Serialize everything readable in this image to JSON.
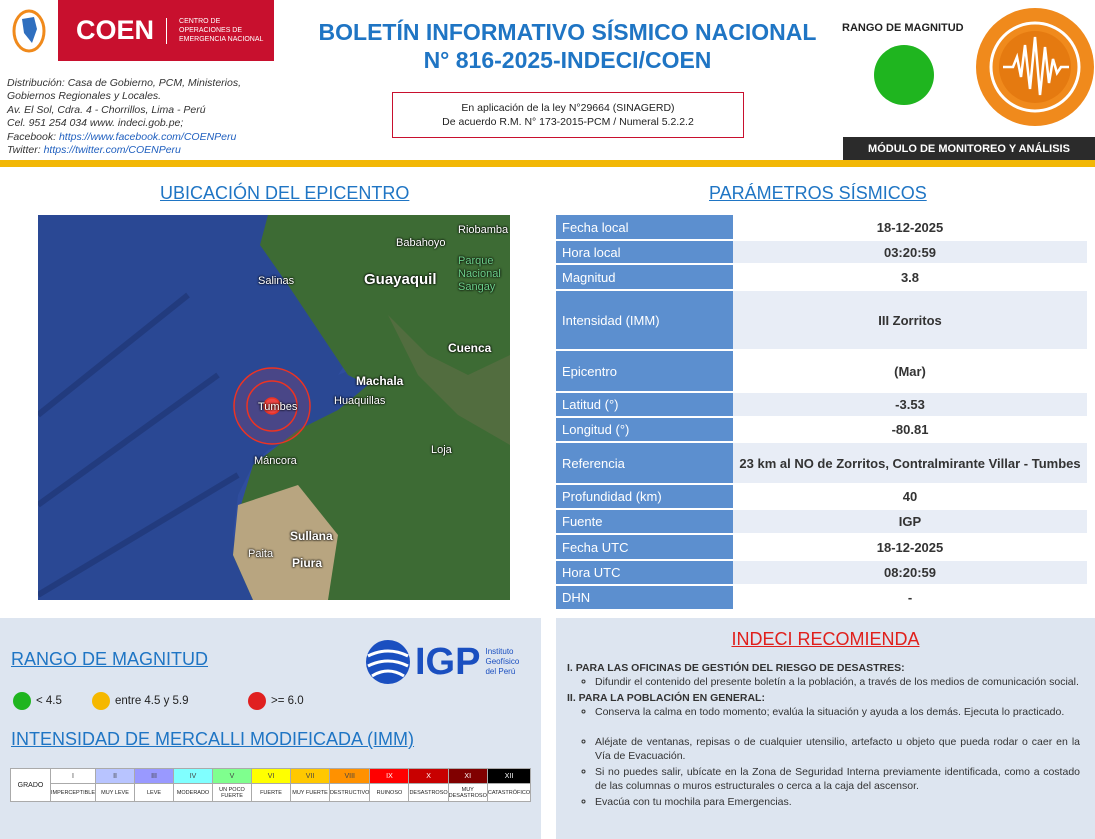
{
  "header": {
    "logo": {
      "name": "COEN",
      "subtitle": [
        "CENTRO DE",
        "OPERACIONES DE",
        "EMERGENCIA NACIONAL"
      ]
    },
    "distribution": [
      "Distribución: Casa de Gobierno, PCM, Ministerios,",
      "Gobiernos Regionales y Locales.",
      "Av. El Sol, Cdra. 4 - Chorrillos, Lima - Perú",
      "Cel. 951 254 034 www. indeci.gob.pe;"
    ],
    "facebook_label": "Facebook: ",
    "facebook_url": "https://www.facebook.com/COENPeru",
    "twitter_label": "Twitter: ",
    "twitter_url": "https://twitter.com/COENPeru",
    "title_line1": "BOLETÍN INFORMATIVO SÍSMICO NACIONAL",
    "title_line2": "N° 816-2025-INDECI/COEN",
    "law_line1": "En aplicación de la ley N°29664 (SINAGERD)",
    "law_line2": "De acuerdo R.M. N° 173-2015-PCM / Numeral 5.2.2.2",
    "range_title": "RANGO DE MAGNITUD",
    "range_color": "#1fb51f",
    "module": "MÓDULO DE MONITOREO Y ANÁLISIS"
  },
  "epicenter": {
    "title": "UBICACIÓN DEL EPICENTRO",
    "cities": [
      "Babahoyo",
      "Riobamba",
      "Salinas",
      "Guayaquil",
      "Parque Nacional Sangay",
      "Cuenca",
      "Machala",
      "Huaquillas",
      "Tumbes",
      "Loja",
      "Máncora",
      "Sullana",
      "Paita",
      "Piura"
    ]
  },
  "params": {
    "title": "PARÁMETROS SÍSMICOS",
    "rows": [
      {
        "k": "Fecha local",
        "v": "18-12-2025"
      },
      {
        "k": "Hora local",
        "v": "03:20:59"
      },
      {
        "k": "Magnitud",
        "v": "3.8"
      },
      {
        "k": "Intensidad (IMM)",
        "v": "III Zorritos"
      },
      {
        "k": "Epicentro",
        "v": "(Mar)"
      },
      {
        "k": "Latitud (°)",
        "v": "-3.53"
      },
      {
        "k": "Longitud (°)",
        "v": "-80.81"
      },
      {
        "k": "Referencia",
        "v": "23 km al NO de Zorritos, Contralmirante Villar - Tumbes"
      },
      {
        "k": "Profundidad (km)",
        "v": "40"
      },
      {
        "k": "Fuente",
        "v": "IGP"
      },
      {
        "k": "Fecha UTC",
        "v": "18-12-2025"
      },
      {
        "k": "Hora UTC",
        "v": "08:20:59"
      },
      {
        "k": "DHN",
        "v": "-"
      }
    ]
  },
  "magnitude": {
    "title": "RANGO DE MAGNITUD",
    "items": [
      {
        "label": "< 4.5",
        "color": "#1fb51f"
      },
      {
        "label": "entre 4.5 y 5.9",
        "color": "#f5b800"
      },
      {
        "label": ">= 6.0",
        "color": "#e02020"
      }
    ]
  },
  "igp": {
    "name": "IGP",
    "full": [
      "Instituto",
      "Geofísico",
      "del Perú"
    ]
  },
  "mercalli": {
    "title": "INTENSIDAD DE MERCALLI MODIFICADA (IMM)",
    "grado": "GRADO",
    "levels": [
      {
        "n": "I",
        "d": "IMPERCEPTIBLE",
        "c": "#ffffff",
        "t": "#444"
      },
      {
        "n": "II",
        "d": "MUY LEVE",
        "c": "#b8c4ff",
        "t": "#444"
      },
      {
        "n": "III",
        "d": "LEVE",
        "c": "#9999ff",
        "t": "#444"
      },
      {
        "n": "IV",
        "d": "MODERADO",
        "c": "#80ffff",
        "t": "#444"
      },
      {
        "n": "V",
        "d": "UN POCO FUERTE",
        "c": "#7fff8e",
        "t": "#444"
      },
      {
        "n": "VI",
        "d": "FUERTE",
        "c": "#ffff00",
        "t": "#444"
      },
      {
        "n": "VII",
        "d": "MUY FUERTE",
        "c": "#ffc800",
        "t": "#444"
      },
      {
        "n": "VIII",
        "d": "DESTRUCTIVO",
        "c": "#ff9100",
        "t": "#444"
      },
      {
        "n": "IX",
        "d": "RUINOSO",
        "c": "#ff0000",
        "t": "#fff"
      },
      {
        "n": "X",
        "d": "DESASTROSO",
        "c": "#c80000",
        "t": "#fff"
      },
      {
        "n": "XI",
        "d": "MUY DESASTROSO",
        "c": "#800000",
        "t": "#fff"
      },
      {
        "n": "XII",
        "d": "CATASTRÓFICO",
        "c": "#000000",
        "t": "#fff"
      }
    ]
  },
  "recommend": {
    "title": "INDECI RECOMIENDA",
    "s1": "I. PARA LAS OFICINAS DE GESTIÓN DEL RIESGO DE DESASTRES:",
    "s1_items": [
      "Difundir el contenido del presente boletín a la población, a través de los medios de comunicación social."
    ],
    "s2": "II. PARA LA POBLACIÓN EN GENERAL:",
    "s2_items": [
      "Conserva la calma en todo momento; evalúa la situación y ayuda a los demás. Ejecuta lo practicado.",
      "Aléjate de ventanas, repisas o de cualquier utensilio, artefacto u objeto que pueda rodar o caer en la Vía de Evacuación.",
      "Si no puedes salir, ubícate en la Zona de Seguridad Interna previamente identificada, como a costado de las columnas o muros estructurales o cerca a la caja del ascensor.",
      "Evacúa con tu mochila para Emergencias."
    ]
  }
}
